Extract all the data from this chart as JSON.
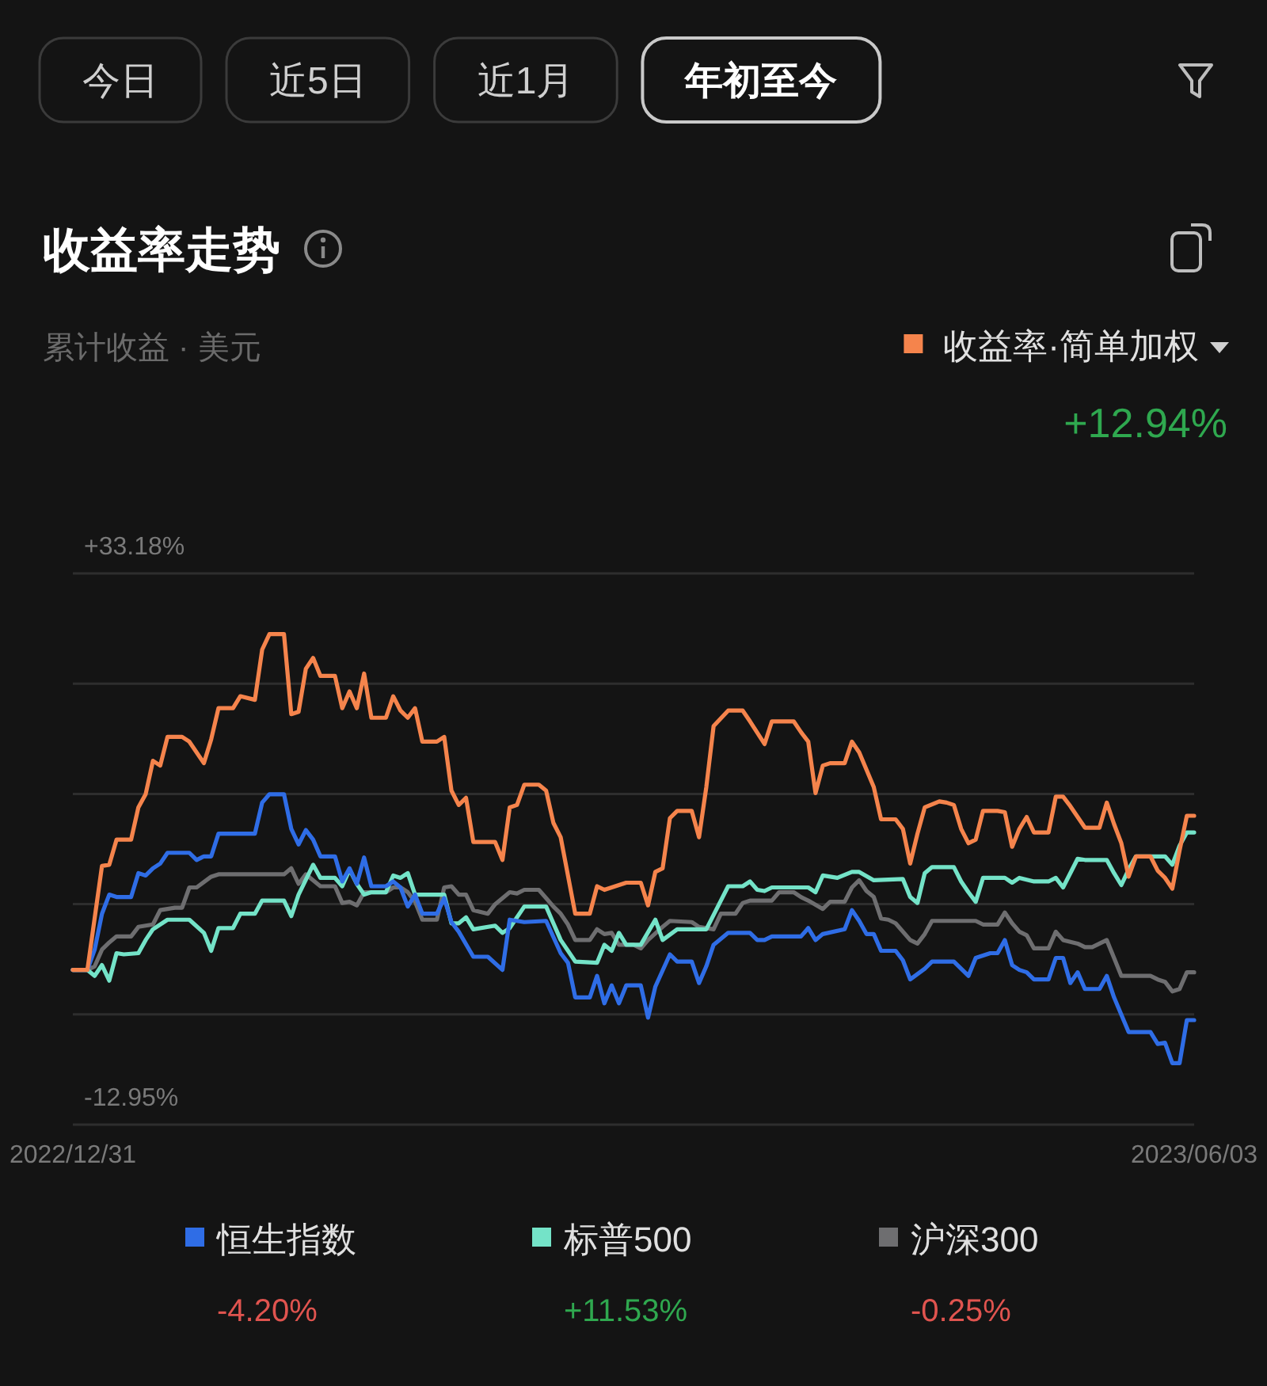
{
  "chart_data": {
    "type": "line",
    "title": "收益率走势",
    "subtitle": "累计收益 · 美元",
    "xlim": [
      "2022-12-31",
      "2023-06-03"
    ],
    "xticks": [
      {
        "value": "2022-12-31",
        "label": "2022/12/31"
      },
      {
        "value": "2023-06-03",
        "label": "2023/06/03"
      }
    ],
    "ylim": [
      -12.95,
      33.18
    ],
    "yticks": [
      {
        "value": -12.95,
        "label": "-12.95%"
      },
      {
        "value": -3.72,
        "label": null
      },
      {
        "value": 5.5,
        "label": null
      },
      {
        "value": 14.73,
        "label": null
      },
      {
        "value": 23.95,
        "label": null
      },
      {
        "value": 33.18,
        "label": "+33.18%"
      }
    ],
    "grid": "y",
    "legend": "top right",
    "annotations": [
      "今日",
      "近5日",
      "近1月",
      "年初至今",
      "+12.94%",
      "-4.20%",
      "+11.53%",
      "-0.25%"
    ],
    "series": [
      {
        "name": "收益率·简单加权",
        "color": "#f5844c",
        "x": [
          "2022-12-31",
          "2023-01-02",
          "2023-01-04",
          "2023-01-05",
          "2023-01-06",
          "2023-01-08",
          "2023-01-09",
          "2023-01-10",
          "2023-01-11",
          "2023-01-12",
          "2023-01-13",
          "2023-01-15",
          "2023-01-16",
          "2023-01-18",
          "2023-01-19",
          "2023-01-20",
          "2023-01-22",
          "2023-01-23",
          "2023-01-25",
          "2023-01-26",
          "2023-01-27",
          "2023-01-29",
          "2023-01-30",
          "2023-01-31",
          "2023-02-01",
          "2023-02-02",
          "2023-02-03",
          "2023-02-05",
          "2023-02-06",
          "2023-02-07",
          "2023-02-08",
          "2023-02-09",
          "2023-02-10",
          "2023-02-12",
          "2023-02-13",
          "2023-02-14",
          "2023-02-15",
          "2023-02-16",
          "2023-02-17",
          "2023-02-19",
          "2023-02-20",
          "2023-02-21",
          "2023-02-22",
          "2023-02-23",
          "2023-02-24",
          "2023-02-27",
          "2023-02-28",
          "2023-03-01",
          "2023-03-02",
          "2023-03-03",
          "2023-03-05",
          "2023-03-06",
          "2023-03-07",
          "2023-03-08",
          "2023-03-10",
          "2023-03-12",
          "2023-03-13",
          "2023-03-14",
          "2023-03-15",
          "2023-03-17",
          "2023-03-19",
          "2023-03-20",
          "2023-03-21",
          "2023-03-22",
          "2023-03-23",
          "2023-03-24",
          "2023-03-26",
          "2023-03-27",
          "2023-03-28",
          "2023-03-29",
          "2023-03-31",
          "2023-04-02",
          "2023-04-03",
          "2023-04-05",
          "2023-04-06",
          "2023-04-09",
          "2023-04-10",
          "2023-04-11",
          "2023-04-12",
          "2023-04-13",
          "2023-04-14",
          "2023-04-16",
          "2023-04-17",
          "2023-04-18",
          "2023-04-20",
          "2023-04-21",
          "2023-04-23",
          "2023-04-24",
          "2023-04-25",
          "2023-04-26",
          "2023-04-27",
          "2023-04-29",
          "2023-04-30",
          "2023-05-01",
          "2023-05-02",
          "2023-05-03",
          "2023-05-04",
          "2023-05-05",
          "2023-05-07",
          "2023-05-08",
          "2023-05-09",
          "2023-05-10",
          "2023-05-11",
          "2023-05-12",
          "2023-05-14",
          "2023-05-15",
          "2023-05-16",
          "2023-05-17",
          "2023-05-19",
          "2023-05-21",
          "2023-05-22",
          "2023-05-23",
          "2023-05-24",
          "2023-05-25",
          "2023-05-26",
          "2023-05-28",
          "2023-05-29",
          "2023-05-30",
          "2023-05-31",
          "2023-06-01",
          "2023-06-02",
          "2023-06-03"
        ],
        "values": [
          0.0,
          0.0,
          8.7,
          8.8,
          10.9,
          10.9,
          13.6,
          14.7,
          17.5,
          17.1,
          19.5,
          19.5,
          19.1,
          17.3,
          19.3,
          21.9,
          21.9,
          22.9,
          22.6,
          26.8,
          28.1,
          28.1,
          21.4,
          21.6,
          25.2,
          26.1,
          24.6,
          24.6,
          21.9,
          23.3,
          21.9,
          24.8,
          21.1,
          21.1,
          22.9,
          21.7,
          21.1,
          21.9,
          19.1,
          19.1,
          19.5,
          15.0,
          13.8,
          14.4,
          10.7,
          10.7,
          9.2,
          13.6,
          13.8,
          15.5,
          15.5,
          15.0,
          12.3,
          11.1,
          4.7,
          4.7,
          7.0,
          6.7,
          6.9,
          7.3,
          7.3,
          5.4,
          8.2,
          8.5,
          12.7,
          13.3,
          13.3,
          11.1,
          15.3,
          20.4,
          21.7,
          21.7,
          20.8,
          18.9,
          20.8,
          20.8,
          19.9,
          19.1,
          14.8,
          17.1,
          17.3,
          17.3,
          19.1,
          18.2,
          15.3,
          12.6,
          12.6,
          11.8,
          8.9,
          11.4,
          13.6,
          14.1,
          14.0,
          13.8,
          11.8,
          10.6,
          10.9,
          13.3,
          13.3,
          13.2,
          10.3,
          11.8,
          12.8,
          11.5,
          11.5,
          14.5,
          14.5,
          13.7,
          11.9,
          11.9,
          14.0,
          12.2,
          10.6,
          7.8,
          9.5,
          9.5,
          8.3,
          7.7,
          6.8,
          10.0,
          12.9,
          12.9
        ]
      },
      {
        "name": "恒生指数",
        "color": "#2f6de6",
        "x": [
          "2022-12-31",
          "2023-01-02",
          "2023-01-03",
          "2023-01-04",
          "2023-01-05",
          "2023-01-06",
          "2023-01-08",
          "2023-01-09",
          "2023-01-10",
          "2023-01-11",
          "2023-01-12",
          "2023-01-13",
          "2023-01-16",
          "2023-01-17",
          "2023-01-18",
          "2023-01-19",
          "2023-01-20",
          "2023-01-25",
          "2023-01-26",
          "2023-01-27",
          "2023-01-29",
          "2023-01-30",
          "2023-01-31",
          "2023-02-01",
          "2023-02-02",
          "2023-02-03",
          "2023-02-05",
          "2023-02-06",
          "2023-02-07",
          "2023-02-08",
          "2023-02-09",
          "2023-02-10",
          "2023-02-12",
          "2023-02-13",
          "2023-02-14",
          "2023-02-15",
          "2023-02-16",
          "2023-02-17",
          "2023-02-19",
          "2023-02-20",
          "2023-02-21",
          "2023-02-22",
          "2023-02-24",
          "2023-02-26",
          "2023-02-28",
          "2023-03-01",
          "2023-03-03",
          "2023-03-06",
          "2023-03-08",
          "2023-03-09",
          "2023-03-10",
          "2023-03-12",
          "2023-03-13",
          "2023-03-14",
          "2023-03-15",
          "2023-03-16",
          "2023-03-17",
          "2023-03-19",
          "2023-03-20",
          "2023-03-21",
          "2023-03-23",
          "2023-03-24",
          "2023-03-26",
          "2023-03-27",
          "2023-03-28",
          "2023-03-29",
          "2023-03-31",
          "2023-04-03",
          "2023-04-04",
          "2023-04-05",
          "2023-04-06",
          "2023-04-10",
          "2023-04-11",
          "2023-04-12",
          "2023-04-13",
          "2023-04-16",
          "2023-04-17",
          "2023-04-18",
          "2023-04-19",
          "2023-04-20",
          "2023-04-21",
          "2023-04-23",
          "2023-04-24",
          "2023-04-25",
          "2023-04-27",
          "2023-04-28",
          "2023-05-01",
          "2023-05-03",
          "2023-05-04",
          "2023-05-06",
          "2023-05-07",
          "2023-05-08",
          "2023-05-09",
          "2023-05-10",
          "2023-05-11",
          "2023-05-12",
          "2023-05-14",
          "2023-05-15",
          "2023-05-16",
          "2023-05-17",
          "2023-05-18",
          "2023-05-19",
          "2023-05-21",
          "2023-05-22",
          "2023-05-23",
          "2023-05-25",
          "2023-05-28",
          "2023-05-29",
          "2023-05-30",
          "2023-05-31",
          "2023-06-01",
          "2023-06-02",
          "2023-06-03"
        ],
        "values": [
          0.0,
          0.0,
          1.7,
          4.7,
          6.3,
          6.1,
          6.1,
          8.1,
          7.9,
          8.5,
          8.9,
          9.8,
          9.8,
          9.2,
          9.5,
          9.5,
          11.4,
          11.4,
          14.0,
          14.7,
          14.7,
          11.8,
          10.5,
          11.7,
          10.9,
          9.5,
          9.5,
          7.4,
          8.5,
          7.2,
          9.4,
          7.0,
          7.0,
          7.4,
          6.9,
          5.3,
          6.3,
          4.7,
          4.7,
          6.0,
          4.0,
          3.2,
          1.1,
          1.1,
          0.0,
          4.2,
          4.0,
          4.1,
          1.4,
          0.6,
          -2.3,
          -2.3,
          -0.5,
          -2.8,
          -1.3,
          -2.8,
          -1.3,
          -1.3,
          -4.0,
          -1.4,
          1.3,
          0.7,
          0.7,
          -1.1,
          0.3,
          2.1,
          3.1,
          3.1,
          2.5,
          2.5,
          2.8,
          2.8,
          3.5,
          2.5,
          3.0,
          3.4,
          5.0,
          4.1,
          3.0,
          3.0,
          1.6,
          1.6,
          0.8,
          -0.8,
          0.1,
          0.7,
          0.7,
          -0.5,
          1.0,
          1.4,
          1.4,
          2.5,
          0.4,
          0.0,
          -0.2,
          -0.8,
          -0.8,
          1.0,
          1.0,
          -1.1,
          -0.2,
          -1.6,
          -1.6,
          -0.5,
          -2.3,
          -5.2,
          -5.2,
          -6.2,
          -6.1,
          -7.8,
          -7.8,
          -4.2,
          -4.2
        ]
      },
      {
        "name": "标普500",
        "color": "#74e3c8",
        "x": [
          "2022-12-31",
          "2023-01-02",
          "2023-01-03",
          "2023-01-04",
          "2023-01-05",
          "2023-01-06",
          "2023-01-07",
          "2023-01-09",
          "2023-01-10",
          "2023-01-11",
          "2023-01-13",
          "2023-01-16",
          "2023-01-18",
          "2023-01-19",
          "2023-01-20",
          "2023-01-22",
          "2023-01-23",
          "2023-01-25",
          "2023-01-26",
          "2023-01-29",
          "2023-01-30",
          "2023-01-31",
          "2023-02-02",
          "2023-02-03",
          "2023-02-05",
          "2023-02-06",
          "2023-02-07",
          "2023-02-08",
          "2023-02-09",
          "2023-02-10",
          "2023-02-12",
          "2023-02-13",
          "2023-02-14",
          "2023-02-15",
          "2023-02-16",
          "2023-02-20",
          "2023-02-21",
          "2023-02-22",
          "2023-02-23",
          "2023-02-24",
          "2023-02-27",
          "2023-02-28",
          "2023-03-01",
          "2023-03-03",
          "2023-03-06",
          "2023-03-07",
          "2023-03-08",
          "2023-03-10",
          "2023-03-13",
          "2023-03-14",
          "2023-03-15",
          "2023-03-16",
          "2023-03-17",
          "2023-03-19",
          "2023-03-21",
          "2023-03-22",
          "2023-03-24",
          "2023-03-28",
          "2023-03-30",
          "2023-03-31",
          "2023-04-02",
          "2023-04-03",
          "2023-04-04",
          "2023-04-05",
          "2023-04-06",
          "2023-04-11",
          "2023-04-12",
          "2023-04-13",
          "2023-04-15",
          "2023-04-17",
          "2023-04-18",
          "2023-04-20",
          "2023-04-24",
          "2023-04-25",
          "2023-04-26",
          "2023-04-27",
          "2023-04-28",
          "2023-05-01",
          "2023-05-02",
          "2023-05-03",
          "2023-05-04",
          "2023-05-05",
          "2023-05-08",
          "2023-05-09",
          "2023-05-10",
          "2023-05-12",
          "2023-05-14",
          "2023-05-15",
          "2023-05-16",
          "2023-05-18",
          "2023-05-19",
          "2023-05-22",
          "2023-05-23",
          "2023-05-24",
          "2023-05-25",
          "2023-05-26",
          "2023-05-30",
          "2023-05-31",
          "2023-06-01",
          "2023-06-02",
          "2023-06-03"
        ],
        "values": [
          0.0,
          0.0,
          -0.5,
          0.4,
          -0.9,
          1.4,
          1.3,
          1.4,
          2.5,
          3.4,
          4.2,
          4.2,
          3.1,
          1.6,
          3.5,
          3.5,
          4.7,
          4.7,
          5.8,
          5.8,
          4.5,
          6.3,
          8.8,
          7.7,
          7.7,
          7.0,
          8.4,
          7.2,
          6.3,
          6.5,
          6.5,
          7.9,
          7.7,
          8.1,
          6.3,
          6.3,
          3.9,
          3.9,
          4.4,
          3.4,
          3.7,
          3.1,
          3.5,
          5.3,
          5.3,
          3.9,
          2.5,
          0.7,
          0.6,
          2.1,
          1.6,
          3.1,
          2.1,
          2.1,
          4.2,
          2.5,
          3.4,
          3.4,
          5.8,
          7.0,
          7.0,
          7.4,
          6.7,
          6.6,
          6.9,
          6.9,
          6.5,
          7.9,
          7.7,
          8.2,
          8.2,
          7.5,
          7.6,
          6.1,
          5.6,
          8.1,
          8.6,
          8.6,
          7.4,
          6.5,
          5.7,
          7.7,
          7.7,
          7.3,
          7.7,
          7.4,
          7.4,
          7.7,
          6.9,
          9.3,
          9.2,
          9.2,
          8.1,
          7.1,
          8.4,
          9.5,
          9.5,
          8.8,
          10.4,
          11.5,
          11.5
        ]
      },
      {
        "name": "沪深300",
        "color": "#6e6e70",
        "x": [
          "2022-12-31",
          "2023-01-02",
          "2023-01-03",
          "2023-01-04",
          "2023-01-05",
          "2023-01-06",
          "2023-01-08",
          "2023-01-09",
          "2023-01-11",
          "2023-01-12",
          "2023-01-14",
          "2023-01-15",
          "2023-01-16",
          "2023-01-17",
          "2023-01-19",
          "2023-01-20",
          "2023-01-29",
          "2023-01-30",
          "2023-01-31",
          "2023-02-01",
          "2023-02-03",
          "2023-02-05",
          "2023-02-06",
          "2023-02-07",
          "2023-02-08",
          "2023-02-09",
          "2023-02-12",
          "2023-02-13",
          "2023-02-14",
          "2023-02-15",
          "2023-02-16",
          "2023-02-17",
          "2023-02-19",
          "2023-02-20",
          "2023-02-21",
          "2023-02-22",
          "2023-02-23",
          "2023-02-24",
          "2023-02-26",
          "2023-02-27",
          "2023-03-01",
          "2023-03-02",
          "2023-03-03",
          "2023-03-05",
          "2023-03-06",
          "2023-03-07",
          "2023-03-08",
          "2023-03-09",
          "2023-03-10",
          "2023-03-12",
          "2023-03-13",
          "2023-03-14",
          "2023-03-15",
          "2023-03-16",
          "2023-03-18",
          "2023-03-19",
          "2023-03-20",
          "2023-03-22",
          "2023-03-23",
          "2023-03-26",
          "2023-03-27",
          "2023-03-29",
          "2023-03-30",
          "2023-04-01",
          "2023-04-02",
          "2023-04-03",
          "2023-04-06",
          "2023-04-07",
          "2023-04-09",
          "2023-04-10",
          "2023-04-11",
          "2023-04-13",
          "2023-04-14",
          "2023-04-16",
          "2023-04-17",
          "2023-04-18",
          "2023-04-19",
          "2023-04-20",
          "2023-04-21",
          "2023-04-22",
          "2023-04-23",
          "2023-04-25",
          "2023-04-26",
          "2023-04-27",
          "2023-04-28",
          "2023-05-04",
          "2023-05-05",
          "2023-05-07",
          "2023-05-08",
          "2023-05-09",
          "2023-05-10",
          "2023-05-11",
          "2023-05-12",
          "2023-05-14",
          "2023-05-15",
          "2023-05-16",
          "2023-05-18",
          "2023-05-19",
          "2023-05-20",
          "2023-05-22",
          "2023-05-23",
          "2023-05-24",
          "2023-05-28",
          "2023-05-29",
          "2023-05-30",
          "2023-05-31",
          "2023-06-01",
          "2023-06-02",
          "2023-06-03"
        ],
        "values": [
          0.0,
          0.0,
          0.3,
          1.7,
          2.3,
          2.8,
          2.8,
          3.6,
          3.8,
          5.0,
          5.2,
          5.2,
          6.9,
          6.9,
          7.8,
          8.0,
          8.0,
          8.5,
          7.2,
          8.0,
          7.0,
          7.0,
          5.6,
          5.7,
          5.4,
          6.5,
          6.5,
          6.9,
          6.9,
          6.5,
          5.7,
          4.2,
          4.2,
          6.9,
          7.0,
          6.3,
          6.3,
          5.0,
          4.7,
          5.5,
          6.5,
          6.4,
          6.7,
          6.7,
          6.0,
          5.3,
          4.7,
          3.8,
          2.5,
          2.5,
          3.4,
          3.0,
          3.1,
          2.1,
          2.1,
          1.8,
          2.5,
          3.6,
          4.1,
          4.0,
          3.6,
          3.4,
          4.7,
          4.7,
          5.6,
          5.8,
          5.8,
          6.5,
          6.5,
          6.1,
          5.8,
          5.1,
          5.7,
          5.7,
          6.9,
          7.5,
          6.6,
          6.1,
          4.3,
          4.2,
          3.9,
          2.5,
          2.2,
          3.0,
          4.1,
          4.1,
          3.8,
          3.8,
          4.8,
          3.9,
          3.2,
          2.9,
          1.8,
          1.8,
          3.2,
          2.5,
          2.2,
          1.9,
          1.9,
          2.5,
          1.0,
          -0.5,
          -0.5,
          -0.8,
          -1.0,
          -1.8,
          -1.6,
          -0.2,
          -0.2
        ]
      }
    ]
  }
}
